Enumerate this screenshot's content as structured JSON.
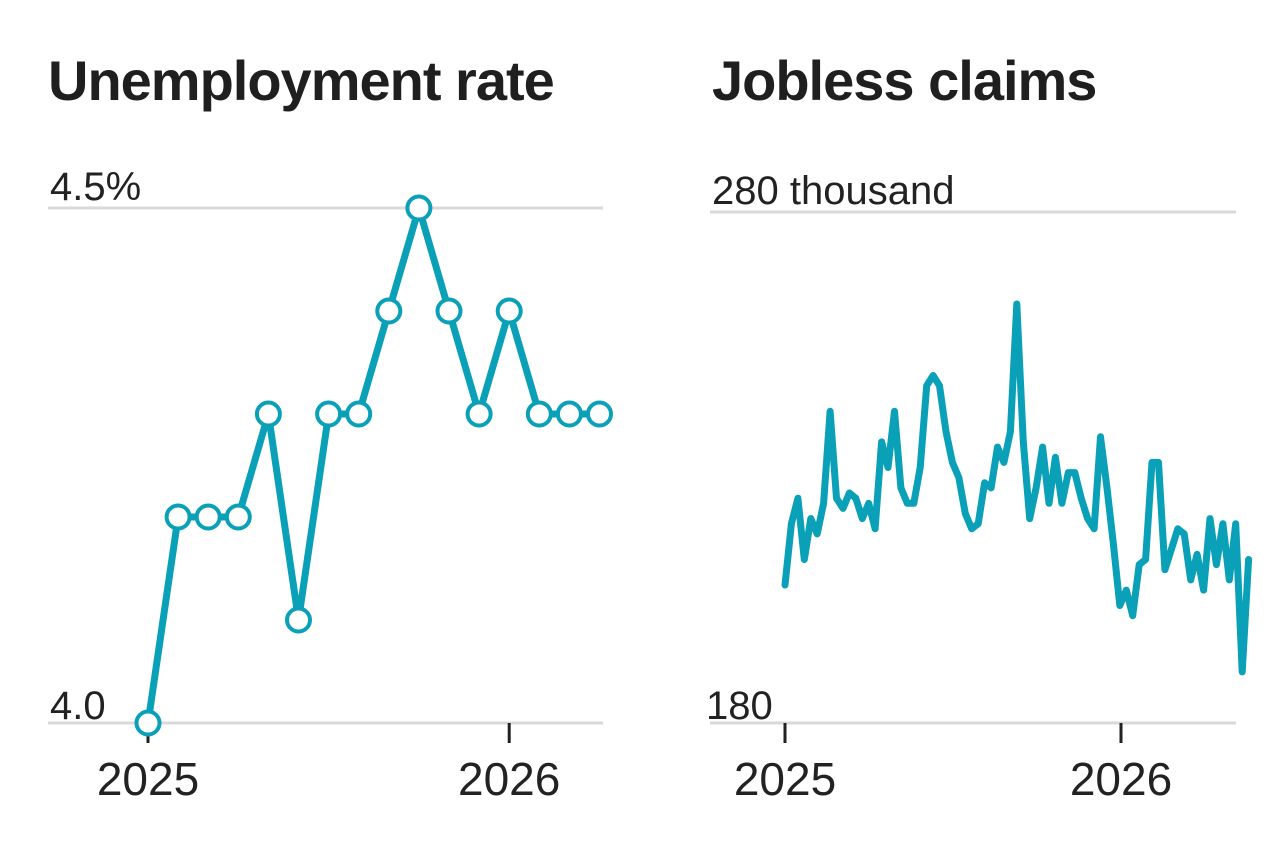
{
  "chart_data": [
    {
      "type": "line",
      "title": "Unemployment rate",
      "ylim": [
        4.0,
        4.5
      ],
      "y_tick_labels": [
        "4.5%",
        "4.0"
      ],
      "x_tick_labels": [
        "2025",
        "2026"
      ],
      "grid": true,
      "markers": true,
      "color": "#0aa0b8",
      "series": [
        {
          "x": [
            "2025-01",
            "2025-02",
            "2025-03",
            "2025-04",
            "2025-05",
            "2025-06",
            "2025-07",
            "2025-08",
            "2025-09",
            "2025-10",
            "2025-11",
            "2025-12",
            "2026-01",
            "2026-02",
            "2026-03",
            "2026-04"
          ],
          "values": [
            4.0,
            4.2,
            4.2,
            4.2,
            4.3,
            4.1,
            4.3,
            4.3,
            4.4,
            4.5,
            4.4,
            4.3,
            4.4,
            4.3,
            4.3,
            4.3
          ]
        }
      ]
    },
    {
      "type": "line",
      "title": "Jobless claims",
      "ylim": [
        180,
        280
      ],
      "y_tick_labels": [
        "280 thousand",
        "180"
      ],
      "x_tick_labels": [
        "2025",
        "2026"
      ],
      "grid": true,
      "markers": false,
      "color": "#0aa0b8",
      "series": [
        {
          "x_start": "2025-01",
          "frequency": "weekly",
          "values": [
            207,
            219,
            224,
            212,
            220,
            217,
            223,
            241,
            224,
            222,
            225,
            224,
            220,
            223,
            218,
            235,
            230,
            241,
            226,
            223,
            223,
            230,
            246,
            248,
            246,
            237,
            231,
            228,
            221,
            218,
            219,
            227,
            226,
            234,
            231,
            237,
            262,
            235,
            220,
            226,
            234,
            223,
            232,
            223,
            229,
            229,
            224,
            220,
            218,
            236,
            226,
            215,
            203,
            206,
            201,
            211,
            212,
            231,
            231,
            210,
            214,
            218,
            217,
            208,
            213,
            206,
            220,
            211,
            219,
            208,
            219,
            190,
            212
          ]
        }
      ]
    }
  ]
}
